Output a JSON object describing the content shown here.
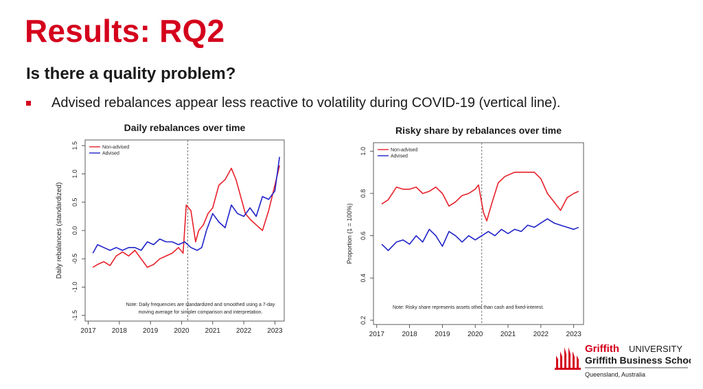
{
  "slide": {
    "title": "Results: RQ2",
    "subtitle": "Is there a quality problem?",
    "bullet": "Advised rebalances appear less reactive to volatility during COVID-19 (vertical line)."
  },
  "colors": {
    "title": "#d4001c",
    "non_advised": "#e8202a",
    "advised": "#1f22c8",
    "vline": "#555555"
  },
  "logo": {
    "name": "Griffith",
    "university": "UNIVERSITY",
    "school": "Griffith Business School",
    "location": "Queensland, Australia"
  },
  "chart_data": [
    {
      "type": "line",
      "title": "Daily rebalances over time",
      "xlabel": "",
      "ylabel": "Daily rebalances (standardized)",
      "xlim": [
        2016.9,
        2023.3
      ],
      "ylim": [
        -1.6,
        1.6
      ],
      "xticks": [
        2017,
        2018,
        2019,
        2020,
        2021,
        2022,
        2023
      ],
      "yticks": [
        -1.5,
        -1.0,
        -0.5,
        0.0,
        0.5,
        1.0,
        1.5
      ],
      "ytick_labels": [
        "-1.5",
        "-1.0",
        "-0.5",
        "0.0",
        "0.5",
        "1.0",
        "1.5"
      ],
      "vline": 2020.2,
      "legend": "top-left",
      "note": [
        "Note: Daily frequencies are standardized and smoothed using a 7-day",
        "moving average for simpler comparison and interpretation."
      ],
      "series": [
        {
          "name": "Non-advised",
          "color": "#e8202a",
          "x": [
            2017.15,
            2017.3,
            2017.5,
            2017.7,
            2017.9,
            2018.1,
            2018.3,
            2018.5,
            2018.7,
            2018.9,
            2019.1,
            2019.3,
            2019.5,
            2019.7,
            2019.9,
            2020.05,
            2020.15,
            2020.3,
            2020.45,
            2020.55,
            2020.7,
            2020.85,
            2021.0,
            2021.2,
            2021.4,
            2021.6,
            2021.75,
            2021.9,
            2022.05,
            2022.2,
            2022.4,
            2022.6,
            2022.8,
            2023.0,
            2023.15
          ],
          "y": [
            -0.65,
            -0.6,
            -0.55,
            -0.62,
            -0.45,
            -0.38,
            -0.45,
            -0.35,
            -0.5,
            -0.65,
            -0.6,
            -0.5,
            -0.45,
            -0.4,
            -0.3,
            -0.4,
            0.45,
            0.35,
            -0.2,
            0.0,
            0.1,
            0.3,
            0.4,
            0.8,
            0.9,
            1.1,
            0.9,
            0.6,
            0.3,
            0.2,
            0.1,
            0.0,
            0.35,
            0.8,
            1.15
          ]
        },
        {
          "name": "Advised",
          "color": "#1f22c8",
          "x": [
            2017.15,
            2017.3,
            2017.5,
            2017.7,
            2017.9,
            2018.1,
            2018.3,
            2018.5,
            2018.7,
            2018.9,
            2019.1,
            2019.3,
            2019.5,
            2019.7,
            2019.9,
            2020.1,
            2020.3,
            2020.5,
            2020.65,
            2020.8,
            2021.0,
            2021.2,
            2021.4,
            2021.6,
            2021.8,
            2022.0,
            2022.2,
            2022.4,
            2022.6,
            2022.8,
            2023.0,
            2023.15
          ],
          "y": [
            -0.4,
            -0.25,
            -0.3,
            -0.35,
            -0.3,
            -0.35,
            -0.3,
            -0.3,
            -0.35,
            -0.2,
            -0.25,
            -0.15,
            -0.2,
            -0.2,
            -0.25,
            -0.2,
            -0.3,
            -0.35,
            -0.3,
            0.0,
            0.3,
            0.15,
            0.05,
            0.45,
            0.3,
            0.25,
            0.4,
            0.25,
            0.6,
            0.55,
            0.7,
            1.3
          ]
        }
      ]
    },
    {
      "type": "line",
      "title": "Risky share by rebalances over time",
      "xlabel": "",
      "ylabel": "Proportion (1 = 100%)",
      "xlim": [
        2016.9,
        2023.3
      ],
      "ylim": [
        0.18,
        1.04
      ],
      "xticks": [
        2017,
        2018,
        2019,
        2020,
        2021,
        2022,
        2023
      ],
      "yticks": [
        0.2,
        0.4,
        0.6,
        0.8,
        1.0
      ],
      "ytick_labels": [
        "0.2",
        "0.4",
        "0.6",
        "0.8",
        "1.0"
      ],
      "vline": 2020.2,
      "legend": "top-left",
      "note": [
        "Note: Risky share represents assets other than cash and fixed-interest."
      ],
      "series": [
        {
          "name": "Non-advised",
          "color": "#e8202a",
          "x": [
            2017.15,
            2017.35,
            2017.6,
            2017.8,
            2018.0,
            2018.2,
            2018.4,
            2018.6,
            2018.8,
            2019.0,
            2019.2,
            2019.4,
            2019.6,
            2019.8,
            2020.0,
            2020.1,
            2020.25,
            2020.35,
            2020.5,
            2020.7,
            2020.9,
            2021.2,
            2021.5,
            2021.8,
            2022.0,
            2022.2,
            2022.4,
            2022.6,
            2022.8,
            2023.0,
            2023.15
          ],
          "y": [
            0.75,
            0.77,
            0.83,
            0.82,
            0.82,
            0.83,
            0.8,
            0.81,
            0.83,
            0.8,
            0.74,
            0.76,
            0.79,
            0.8,
            0.82,
            0.84,
            0.71,
            0.67,
            0.75,
            0.85,
            0.88,
            0.9,
            0.9,
            0.9,
            0.87,
            0.8,
            0.76,
            0.72,
            0.78,
            0.8,
            0.81
          ]
        },
        {
          "name": "Advised",
          "color": "#1f22c8",
          "x": [
            2017.15,
            2017.35,
            2017.6,
            2017.8,
            2018.0,
            2018.2,
            2018.4,
            2018.6,
            2018.8,
            2019.0,
            2019.2,
            2019.4,
            2019.6,
            2019.8,
            2020.0,
            2020.2,
            2020.4,
            2020.6,
            2020.8,
            2021.0,
            2021.2,
            2021.4,
            2021.6,
            2021.8,
            2022.0,
            2022.2,
            2022.4,
            2022.6,
            2022.8,
            2023.0,
            2023.15
          ],
          "y": [
            0.56,
            0.53,
            0.57,
            0.58,
            0.56,
            0.6,
            0.57,
            0.63,
            0.6,
            0.55,
            0.62,
            0.6,
            0.57,
            0.6,
            0.58,
            0.6,
            0.62,
            0.6,
            0.63,
            0.61,
            0.63,
            0.62,
            0.65,
            0.64,
            0.66,
            0.68,
            0.66,
            0.65,
            0.64,
            0.63,
            0.64
          ]
        }
      ]
    }
  ]
}
